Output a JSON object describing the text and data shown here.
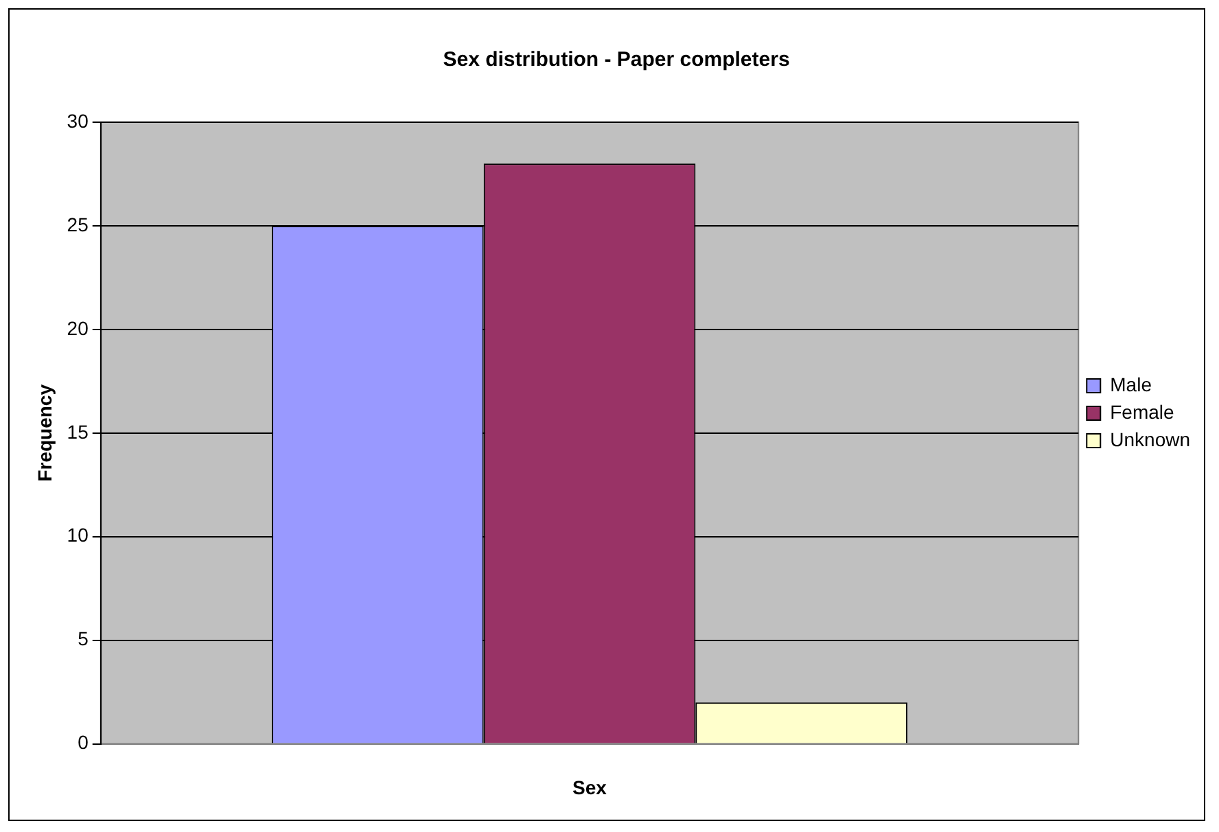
{
  "chart_data": {
    "type": "bar",
    "title": "Sex distribution - Paper completers",
    "xlabel": "Sex",
    "ylabel": "Frequency",
    "categories": [
      null
    ],
    "series": [
      {
        "name": "Male",
        "color": "#9999ff",
        "values": [
          25
        ]
      },
      {
        "name": "Female",
        "color": "#993366",
        "values": [
          28
        ]
      },
      {
        "name": "Unknown",
        "color": "#ffffcc",
        "values": [
          2
        ]
      }
    ],
    "ylim": [
      0,
      30
    ],
    "yticks": [
      0,
      5,
      10,
      15,
      20,
      25,
      30
    ],
    "grid": "y",
    "legend": "right"
  }
}
